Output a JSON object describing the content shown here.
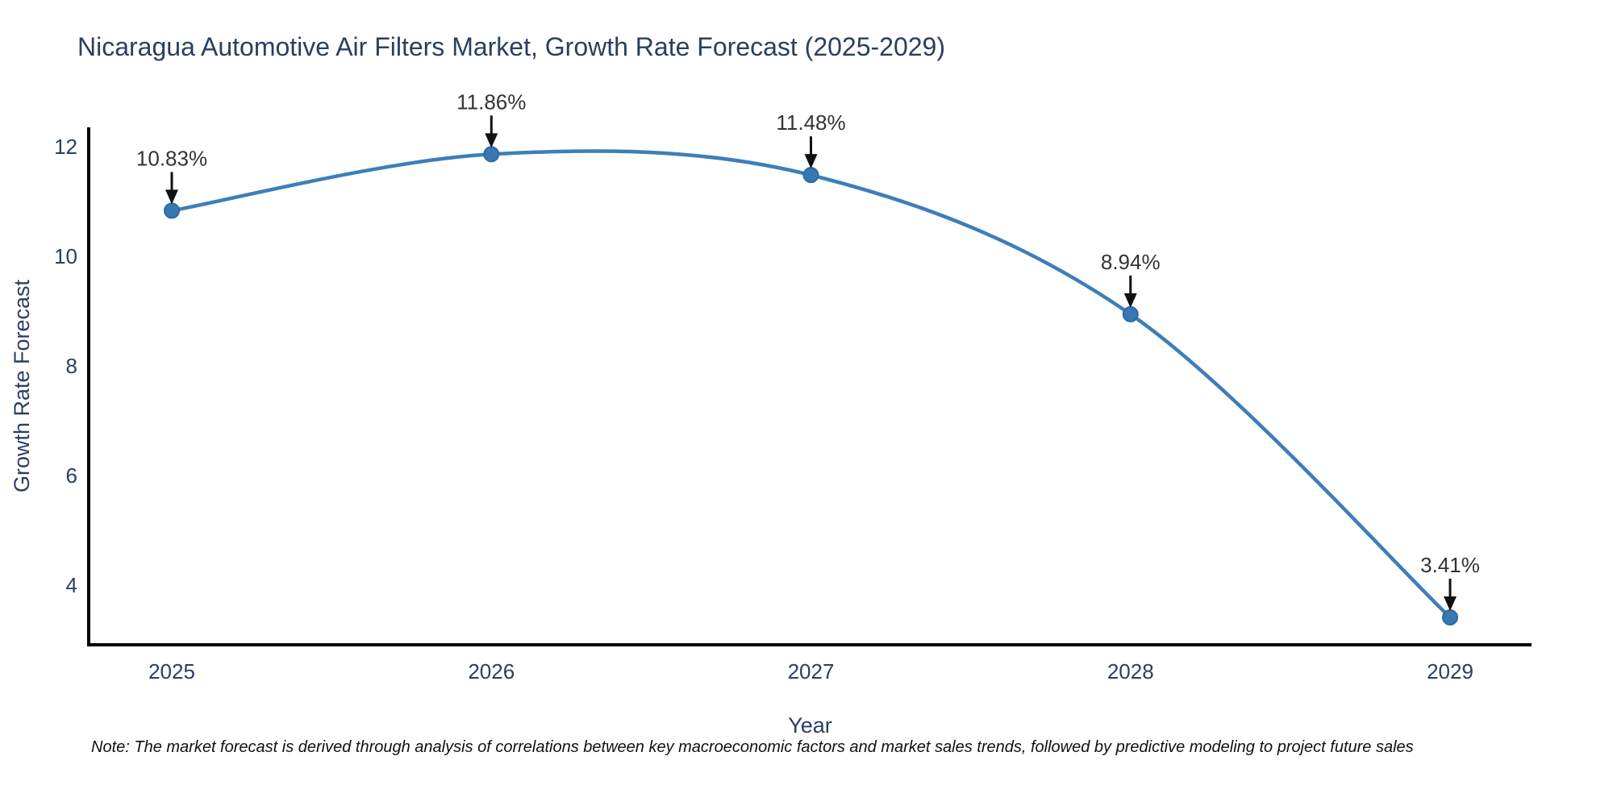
{
  "chart": {
    "title": "Nicaragua Automotive Air Filters Market, Growth Rate Forecast (2025-2029)",
    "note": "Note: The market forecast is derived through analysis of correlations between key macroeconomic factors and market sales trends, followed by predictive modeling to project future sales"
  },
  "chart_data": {
    "type": "line",
    "title": "Nicaragua Automotive Air Filters Market, Growth Rate Forecast (2025-2029)",
    "xlabel": "Year",
    "ylabel": "Growth Rate Forecast",
    "categories": [
      "2025",
      "2026",
      "2027",
      "2028",
      "2029"
    ],
    "values": [
      10.83,
      11.86,
      11.48,
      8.94,
      3.41
    ],
    "point_labels": [
      "10.83%",
      "11.86%",
      "11.48%",
      "8.94%",
      "3.41%"
    ],
    "yticks": [
      4,
      6,
      8,
      10,
      12
    ],
    "ylim": [
      2.91,
      12.35
    ],
    "line_shape": "spline",
    "grid": false,
    "legend": "none",
    "colors": {
      "line": "#3e7eb8",
      "marker_fill": "#3878b4",
      "marker_stroke": "#2f6aa0",
      "axis": "#000000",
      "tick_text": "#2a3f5f",
      "annotation_text": "#333333",
      "arrow": "#111111"
    }
  }
}
